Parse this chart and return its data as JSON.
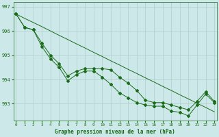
{
  "xlabel": "Graphe pression niveau de la mer (hPa)",
  "x": [
    0,
    1,
    2,
    3,
    4,
    5,
    6,
    7,
    8,
    9,
    10,
    11,
    12,
    13,
    14,
    15,
    16,
    17,
    18,
    19,
    20,
    21,
    22,
    23
  ],
  "y_top": [
    996.7,
    996.15,
    996.05,
    995.5,
    995.0,
    994.65,
    994.15,
    994.35,
    994.45,
    994.45,
    994.45,
    994.4,
    994.1,
    993.85,
    993.55,
    993.15,
    993.05,
    993.05,
    992.95,
    992.85,
    992.75,
    993.1,
    993.5,
    993.1
  ],
  "y_bot": [
    996.7,
    996.15,
    996.05,
    995.35,
    994.85,
    994.5,
    993.95,
    994.2,
    994.35,
    994.35,
    994.1,
    993.8,
    993.45,
    993.25,
    993.05,
    992.95,
    992.9,
    992.9,
    992.7,
    992.65,
    992.5,
    992.95,
    993.4,
    993.05
  ],
  "y_diag": [
    996.7,
    996.52,
    996.35,
    996.18,
    996.0,
    995.82,
    995.65,
    995.47,
    995.3,
    995.12,
    994.95,
    994.77,
    994.6,
    994.42,
    994.25,
    994.07,
    993.9,
    993.72,
    993.55,
    993.37,
    993.2,
    993.02,
    992.85,
    992.67
  ],
  "ylim": [
    992.3,
    997.2
  ],
  "yticks": [
    993,
    994,
    995,
    996,
    997
  ],
  "bg_color": "#cce8e8",
  "grid_color": "#b0cccc",
  "line_color": "#1a6b1a",
  "marker_color": "#1a6b1a",
  "xlabel_color": "#1a6b1a",
  "tick_color": "#1a6b1a",
  "font_name": "monospace"
}
